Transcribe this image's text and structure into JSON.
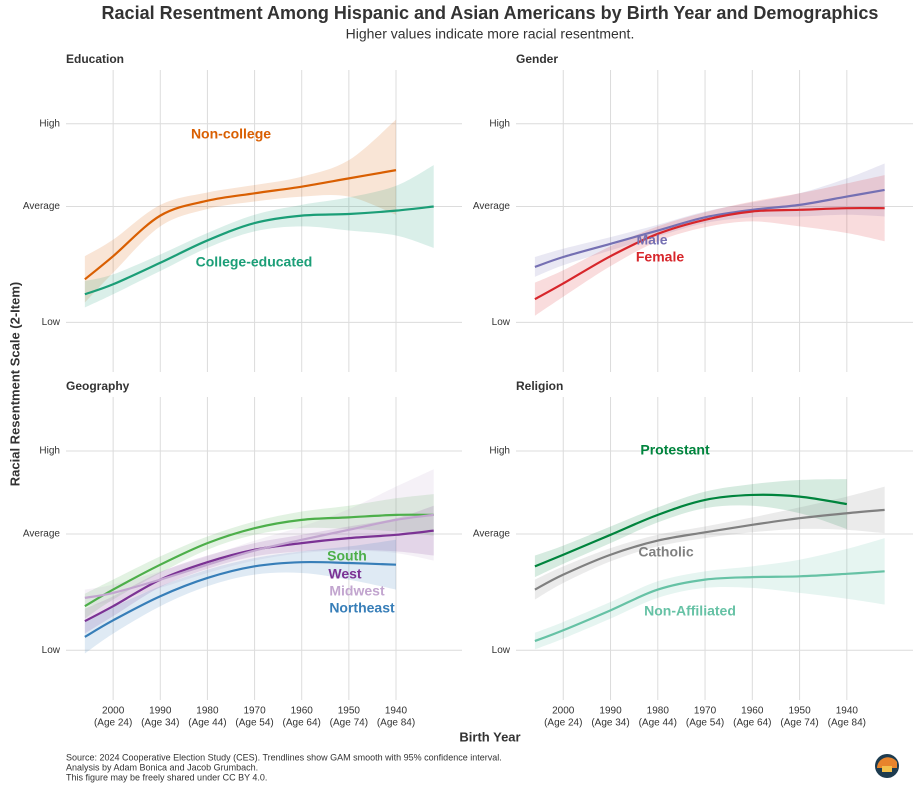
{
  "title": "Racial Resentment Among Hispanic and Asian Americans by Birth Year and Demographics",
  "subtitle": "Higher values indicate more racial resentment.",
  "ylabel": "Racial Resentment Scale (2-Item)",
  "xlabel": "Birth Year",
  "source": [
    "Source: 2024 Cooperative Election Study (CES). Trendlines show GAM smooth with 95% confidence interval.",
    "Analysis by Adam Bonica and Jacob Grumbach.",
    "This figure may be freely shared under CC BY 4.0."
  ],
  "chart_data": [
    {
      "type": "line",
      "title": "Education",
      "x": [
        2006,
        2000,
        1990,
        1980,
        1970,
        1960,
        1950,
        1940,
        1932
      ],
      "xlim": [
        2010,
        1926
      ],
      "xticks": [
        2000,
        1990,
        1980,
        1970,
        1960,
        1950,
        1940
      ],
      "ylim": [
        -2.0,
        1.65
      ],
      "yticks": [
        {
          "value": -1.4,
          "label": "Low"
        },
        {
          "value": 0,
          "label": "Average"
        },
        {
          "value": 1,
          "label": "High"
        }
      ],
      "grid": true,
      "series": [
        {
          "name": "Non-college",
          "color": "#d95f02",
          "values": [
            -0.88,
            -0.6,
            -0.11,
            0.07,
            0.16,
            0.24,
            0.34,
            0.44,
            null
          ],
          "lower": [
            -1.16,
            -0.8,
            -0.24,
            -0.03,
            0.06,
            0.12,
            0.12,
            -0.1,
            null
          ],
          "upper": [
            -0.6,
            -0.4,
            0.02,
            0.17,
            0.26,
            0.36,
            0.56,
            1.05,
            null
          ]
        },
        {
          "name": "College-educated",
          "color": "#1b9e77",
          "values": [
            -1.06,
            -0.94,
            -0.68,
            -0.41,
            -0.2,
            -0.11,
            -0.09,
            -0.05,
            0
          ],
          "lower": [
            -1.22,
            -1.06,
            -0.78,
            -0.5,
            -0.3,
            -0.24,
            -0.29,
            -0.35,
            -0.5
          ],
          "upper": [
            -0.9,
            -0.82,
            -0.58,
            -0.32,
            -0.1,
            0.02,
            0.11,
            0.25,
            0.5
          ]
        }
      ]
    },
    {
      "type": "line",
      "title": "Gender",
      "x": [
        2006,
        2000,
        1990,
        1980,
        1970,
        1960,
        1950,
        1940,
        1932
      ],
      "xlim": [
        2010,
        1926
      ],
      "xticks": [
        2000,
        1990,
        1980,
        1970,
        1960,
        1950,
        1940
      ],
      "ylim": [
        -2.0,
        1.65
      ],
      "yticks": [
        {
          "value": -1.4,
          "label": "Low"
        },
        {
          "value": 0,
          "label": "Average"
        },
        {
          "value": 1,
          "label": "High"
        }
      ],
      "grid": true,
      "series": [
        {
          "name": "Male",
          "color": "#7570b3",
          "values": [
            -0.73,
            -0.61,
            -0.45,
            -0.29,
            -0.13,
            -0.04,
            0.02,
            0.12,
            0.2
          ],
          "lower": [
            -0.85,
            -0.71,
            -0.53,
            -0.36,
            -0.2,
            -0.13,
            -0.12,
            -0.1,
            -0.12
          ],
          "upper": [
            -0.61,
            -0.51,
            -0.37,
            -0.22,
            -0.06,
            0.05,
            0.16,
            0.34,
            0.52
          ]
        },
        {
          "name": "Female",
          "color": "#d7262b",
          "values": [
            -1.12,
            -0.93,
            -0.6,
            -0.33,
            -0.16,
            -0.06,
            -0.04,
            -0.02,
            -0.02
          ],
          "lower": [
            -1.32,
            -1.09,
            -0.72,
            -0.42,
            -0.25,
            -0.18,
            -0.24,
            -0.32,
            -0.42
          ],
          "upper": [
            -0.92,
            -0.77,
            -0.48,
            -0.24,
            -0.07,
            0.06,
            0.16,
            0.28,
            0.38
          ]
        }
      ]
    },
    {
      "type": "line",
      "title": "Geography",
      "x": [
        2006,
        2000,
        1990,
        1980,
        1970,
        1960,
        1950,
        1940,
        1932
      ],
      "xlim": [
        2010,
        1926
      ],
      "xticks": [
        2000,
        1990,
        1980,
        1970,
        1960,
        1950,
        1940
      ],
      "xtick_ages": [
        "(Age 24)",
        "(Age 34)",
        "(Age 44)",
        "(Age 54)",
        "(Age 64)",
        "(Age 74)",
        "(Age 84)"
      ],
      "ylim": [
        -2.0,
        1.65
      ],
      "yticks": [
        {
          "value": -1.4,
          "label": "Low"
        },
        {
          "value": 0,
          "label": "Average"
        },
        {
          "value": 1,
          "label": "High"
        }
      ],
      "grid": true,
      "series": [
        {
          "name": "South",
          "color": "#4daf4a",
          "values": [
            -0.87,
            -0.67,
            -0.37,
            -0.11,
            0.07,
            0.17,
            0.2,
            0.23,
            0.23
          ],
          "lower": [
            -1.02,
            -0.79,
            -0.47,
            -0.19,
            -0.01,
            0.07,
            0.06,
            0.03,
            -0.02
          ],
          "upper": [
            -0.72,
            -0.55,
            -0.27,
            -0.03,
            0.15,
            0.27,
            0.34,
            0.43,
            0.48
          ]
        },
        {
          "name": "West",
          "color": "#7b3294",
          "values": [
            -1.05,
            -0.87,
            -0.55,
            -0.34,
            -0.19,
            -0.11,
            -0.05,
            -0.01,
            0.04
          ],
          "lower": [
            -1.2,
            -0.99,
            -0.64,
            -0.42,
            -0.27,
            -0.21,
            -0.19,
            -0.21,
            -0.26
          ],
          "upper": [
            -0.9,
            -0.75,
            -0.46,
            -0.26,
            -0.11,
            -0.01,
            0.09,
            0.19,
            0.34
          ]
        },
        {
          "name": "Midwest",
          "color": "#c2a5cf",
          "values": [
            -0.77,
            -0.71,
            -0.55,
            -0.37,
            -0.2,
            -0.07,
            0.05,
            0.17,
            0.23
          ],
          "lower": [
            -0.87,
            -0.81,
            -0.65,
            -0.47,
            -0.32,
            -0.23,
            -0.2,
            -0.23,
            -0.32
          ],
          "upper": [
            -0.67,
            -0.61,
            -0.45,
            -0.27,
            -0.08,
            0.09,
            0.3,
            0.57,
            0.78
          ]
        },
        {
          "name": "Northeast",
          "color": "#377eb8",
          "values": [
            -1.24,
            -1.04,
            -0.75,
            -0.53,
            -0.39,
            -0.34,
            -0.35,
            -0.37,
            null
          ],
          "lower": [
            -1.44,
            -1.2,
            -0.87,
            -0.63,
            -0.49,
            -0.47,
            -0.55,
            -0.67,
            null
          ],
          "upper": [
            -1.04,
            -0.88,
            -0.63,
            -0.43,
            -0.29,
            -0.21,
            -0.15,
            -0.07,
            null
          ]
        }
      ]
    },
    {
      "type": "line",
      "title": "Religion",
      "x": [
        2006,
        2000,
        1990,
        1980,
        1970,
        1960,
        1950,
        1940,
        1932
      ],
      "xlim": [
        2010,
        1926
      ],
      "xticks": [
        2000,
        1990,
        1980,
        1970,
        1960,
        1950,
        1940
      ],
      "xtick_ages": [
        "(Age 24)",
        "(Age 34)",
        "(Age 44)",
        "(Age 54)",
        "(Age 64)",
        "(Age 74)",
        "(Age 84)"
      ],
      "ylim": [
        -2.0,
        1.65
      ],
      "yticks": [
        {
          "value": -1.4,
          "label": "Low"
        },
        {
          "value": 0,
          "label": "Average"
        },
        {
          "value": 1,
          "label": "High"
        }
      ],
      "grid": true,
      "series": [
        {
          "name": "Protestant",
          "color": "#00843d",
          "values": [
            -0.39,
            -0.25,
            -0.01,
            0.23,
            0.41,
            0.47,
            0.45,
            0.36,
            null
          ],
          "lower": [
            -0.52,
            -0.36,
            -0.11,
            0.14,
            0.31,
            0.34,
            0.25,
            0.06,
            null
          ],
          "upper": [
            -0.26,
            -0.14,
            0.09,
            0.32,
            0.51,
            0.6,
            0.65,
            0.66,
            null
          ]
        },
        {
          "name": "Catholic",
          "color": "#808080",
          "values": [
            -0.67,
            -0.49,
            -0.25,
            -0.08,
            0.02,
            0.11,
            0.19,
            0.25,
            0.29
          ],
          "lower": [
            -0.79,
            -0.59,
            -0.33,
            -0.15,
            -0.05,
            0.02,
            0.06,
            0.05,
            0.01
          ],
          "upper": [
            -0.55,
            -0.39,
            -0.17,
            -0.01,
            0.09,
            0.2,
            0.32,
            0.45,
            0.57
          ]
        },
        {
          "name": "Non-Affiliated",
          "color": "#66c2a5",
          "values": [
            -1.29,
            -1.16,
            -0.92,
            -0.67,
            -0.55,
            -0.52,
            -0.51,
            -0.48,
            -0.45
          ],
          "lower": [
            -1.39,
            -1.26,
            -1.02,
            -0.77,
            -0.65,
            -0.65,
            -0.71,
            -0.78,
            -0.85
          ],
          "upper": [
            -1.19,
            -1.06,
            -0.82,
            -0.57,
            -0.45,
            -0.39,
            -0.31,
            -0.18,
            -0.05
          ]
        }
      ]
    }
  ]
}
